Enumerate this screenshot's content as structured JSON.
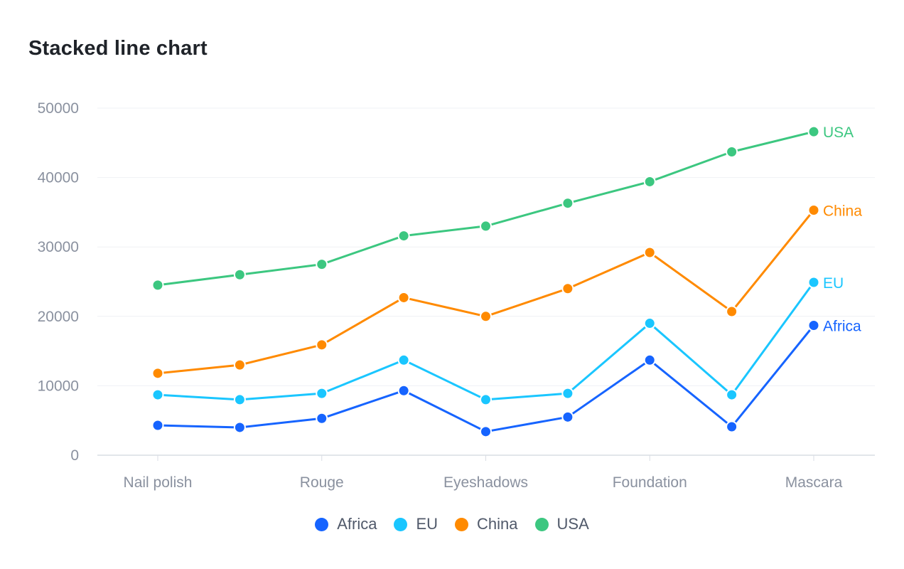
{
  "chart_data": {
    "type": "line",
    "stacked": true,
    "title": "Stacked line chart",
    "xlabel": "",
    "ylabel": "",
    "categories": [
      "Nail polish",
      "",
      "Rouge",
      "",
      "Eyeshadows",
      "",
      "Foundation",
      "",
      "Mascara"
    ],
    "x_tick_labels": [
      "Nail polish",
      "Rouge",
      "Eyeshadows",
      "Foundation",
      "Mascara"
    ],
    "y_ticks": [
      0,
      10000,
      20000,
      30000,
      40000,
      50000
    ],
    "y_tick_labels": [
      "0",
      "10000",
      "20000",
      "30000",
      "40000",
      "50000"
    ],
    "ylim": [
      0,
      50000
    ],
    "grid": true,
    "legend_position": "bottom",
    "series": [
      {
        "name": "Africa",
        "color": "#1664ff",
        "values": [
          4300,
          4000,
          5300,
          9300,
          3400,
          5500,
          13700,
          4100,
          18700
        ]
      },
      {
        "name": "EU",
        "color": "#1ac6ff",
        "values": [
          4400,
          4000,
          3600,
          4400,
          4600,
          3400,
          5300,
          4600,
          6200
        ]
      },
      {
        "name": "China",
        "color": "#ff8a00",
        "values": [
          3100,
          5000,
          7000,
          9000,
          12000,
          15100,
          10200,
          12000,
          10400
        ]
      },
      {
        "name": "USA",
        "color": "#3cc780",
        "values": [
          12700,
          13000,
          11600,
          8900,
          13000,
          12300,
          10200,
          23000,
          11300
        ]
      }
    ],
    "cumulative": {
      "Africa": [
        4300,
        4000,
        5300,
        9300,
        3400,
        5500,
        13700,
        4100,
        18700
      ],
      "EU": [
        8700,
        8000,
        8900,
        13700,
        8000,
        8900,
        19000,
        8700,
        24900
      ],
      "China": [
        11800,
        13000,
        15900,
        22700,
        20000,
        24000,
        29200,
        20700,
        35300
      ],
      "USA": [
        24500,
        26000,
        27500,
        31600,
        33000,
        36300,
        39400,
        43700,
        46600
      ]
    },
    "end_labels": [
      "Africa",
      "EU",
      "China",
      "USA"
    ]
  },
  "legend": {
    "items": [
      {
        "label": "Africa",
        "color": "#1664ff"
      },
      {
        "label": "EU",
        "color": "#1ac6ff"
      },
      {
        "label": "China",
        "color": "#ff8a00"
      },
      {
        "label": "USA",
        "color": "#3cc780"
      }
    ]
  }
}
